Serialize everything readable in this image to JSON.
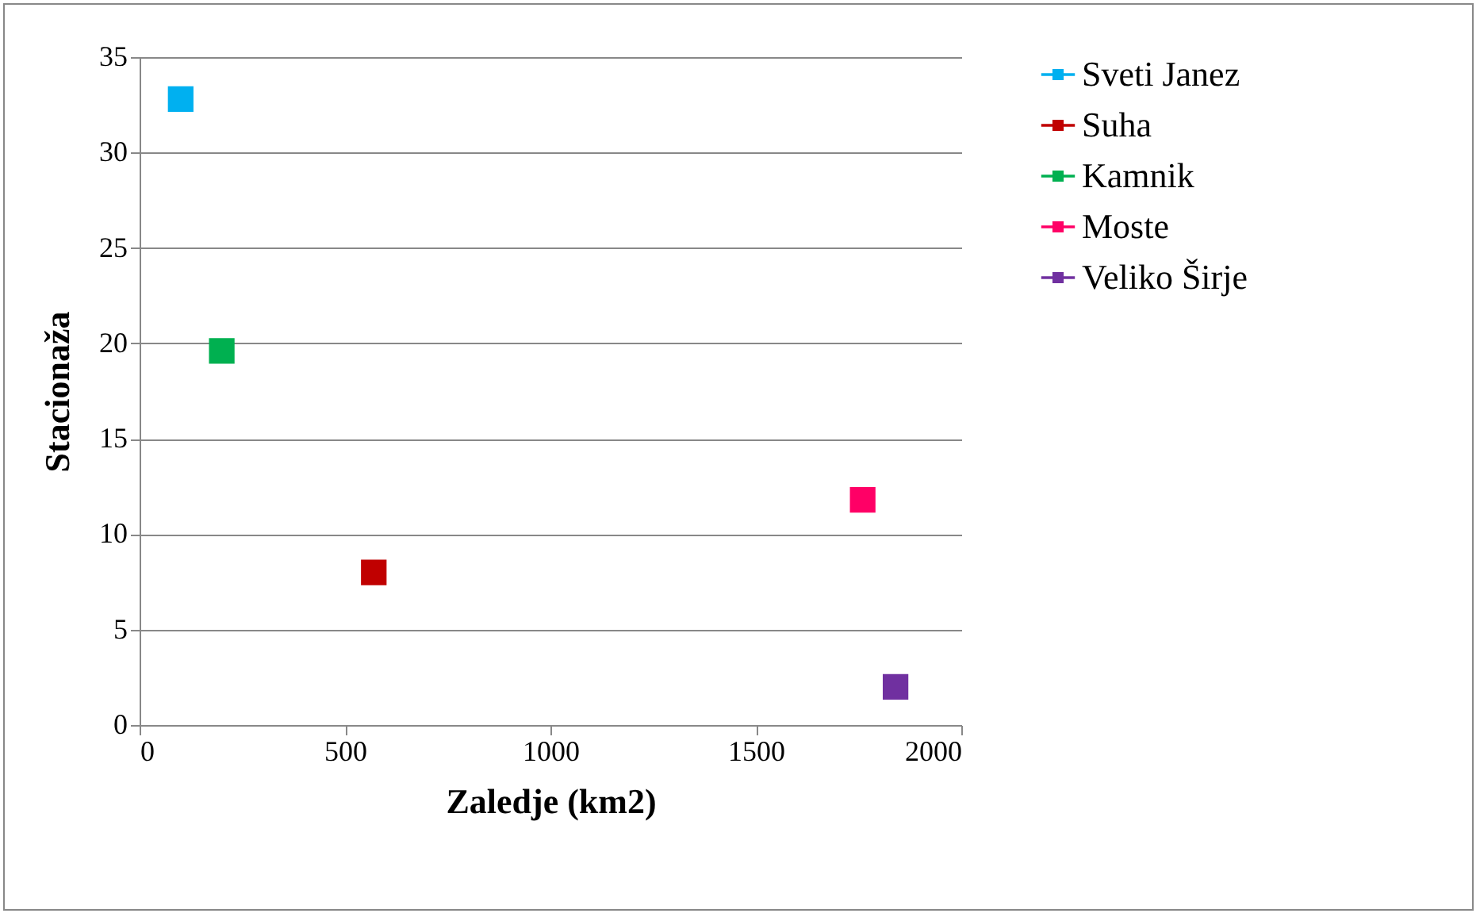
{
  "chart_data": {
    "type": "scatter",
    "xlabel": "Zaledje (km2)",
    "ylabel": "Stacionaža",
    "xlim": [
      0,
      2000
    ],
    "ylim": [
      0,
      35
    ],
    "xticks": [
      0,
      500,
      1000,
      1500,
      2000
    ],
    "yticks": [
      0,
      5,
      10,
      15,
      20,
      25,
      30,
      35
    ],
    "grid": "y",
    "legend": "right",
    "marker": "square",
    "series": [
      {
        "name": "Sveti Janez",
        "color": "#00b0f0",
        "x": [
          100
        ],
        "values": [
          32.8
        ]
      },
      {
        "name": "Suha",
        "color": "#c00000",
        "x": [
          570
        ],
        "values": [
          8.0
        ]
      },
      {
        "name": "Kamnik",
        "color": "#00b050",
        "x": [
          200
        ],
        "values": [
          19.6
        ]
      },
      {
        "name": "Moste",
        "color": "#ff0066",
        "x": [
          1760
        ],
        "values": [
          11.8
        ]
      },
      {
        "name": "Veliko Širje",
        "color": "#7030a0",
        "x": [
          1840
        ],
        "values": [
          2.0
        ]
      }
    ]
  }
}
